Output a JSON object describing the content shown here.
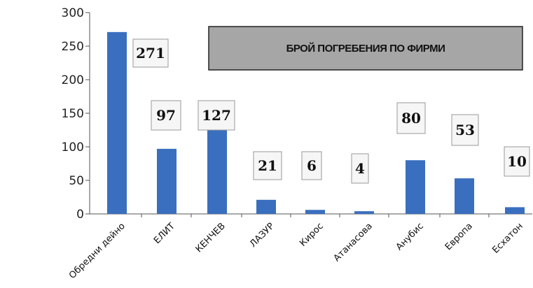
{
  "chart_data": {
    "type": "bar",
    "title": "БРОЙ ПОГРЕБЕНИЯ ПО ФИРМИ",
    "categories": [
      "Обредни дейно",
      "ЕЛИТ",
      "КЕНЧЕВ",
      "ЛАЗУР",
      "Кирос",
      "Атанасова",
      "Анубис",
      "Европа",
      "Есхатон"
    ],
    "values": [
      271,
      97,
      127,
      21,
      6,
      4,
      80,
      53,
      10
    ],
    "data_labels": [
      "271",
      "97",
      "127",
      "21",
      "6",
      "4",
      "80",
      "53",
      "10"
    ],
    "y_ticks": [
      "0",
      "50",
      "100",
      "150",
      "200",
      "250",
      "300"
    ],
    "ylim": [
      0,
      300
    ],
    "bar_color": "#3a6fbf",
    "title_box_color": "#a6a6a6",
    "grid": false
  }
}
